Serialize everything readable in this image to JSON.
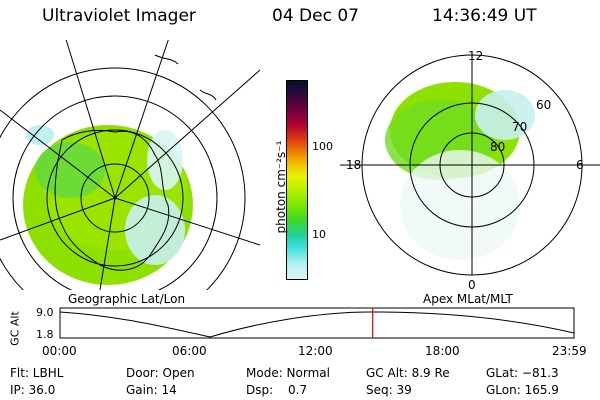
{
  "header": {
    "title": "Ultraviolet Imager",
    "date": "04 Dec 07",
    "time": "14:36:49 UT"
  },
  "left_map": {
    "label": "Geographic Lat/Lon"
  },
  "right_map": {
    "label": "Apex MLat/MLT",
    "mlt_labels": {
      "top": "12",
      "left": "18",
      "right": "6",
      "bottom": "0"
    },
    "lat_labels": [
      "60",
      "70",
      "80"
    ]
  },
  "colorbar": {
    "unit_label": "photon cm⁻²s⁻¹",
    "ticks": [
      "100",
      "10"
    ],
    "colors": [
      "#001030",
      "#2a0a3a",
      "#6a0040",
      "#b00030",
      "#e04010",
      "#f08000",
      "#f0c000",
      "#e8f000",
      "#b8f000",
      "#80e800",
      "#40d820",
      "#20d0a0",
      "#40e0e0",
      "#b0f0f0",
      "#e0f4f4"
    ]
  },
  "altitude_plot": {
    "ylabel": "GC Alt",
    "yticks": [
      "9.0",
      "1.8"
    ],
    "xticks": [
      "00:00",
      "06:00",
      "12:00",
      "18:00",
      "23:59"
    ],
    "marker_hour": 14.6,
    "marker_color": "#e00000"
  },
  "info": {
    "filter": "Flt: LBHL",
    "ip": "IP: 36.0",
    "door": "Door: Open",
    "gain": "Gain: 14",
    "mode": "Mode: Normal",
    "dsp_label": "Dsp:",
    "dsp_value": "0.7",
    "gc_alt": "GC Alt: 8.9 Re",
    "seq": "Seq: 39",
    "glat": "GLat: −81.3",
    "glon": "GLon: 165.9"
  }
}
